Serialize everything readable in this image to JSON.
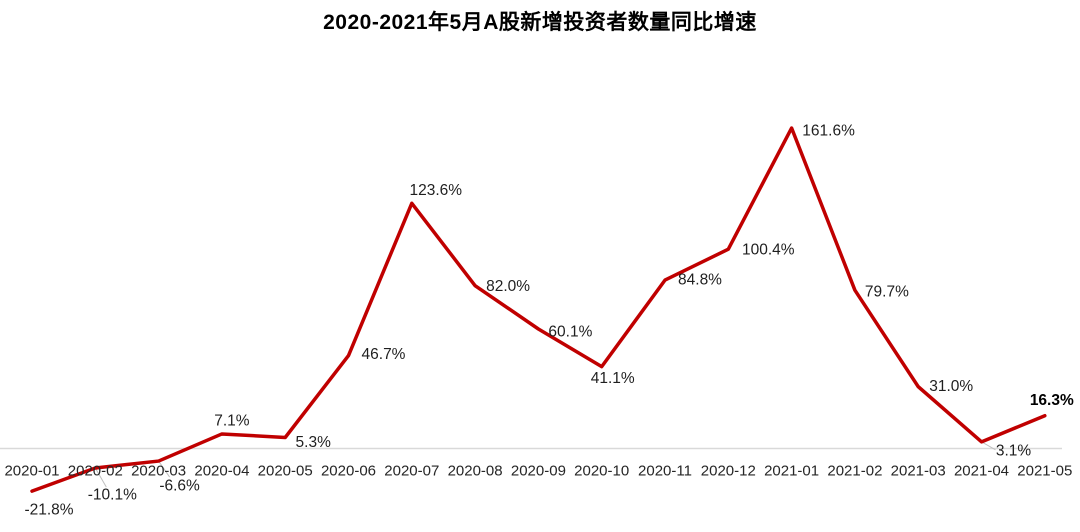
{
  "chart_data": {
    "type": "line",
    "title": "2020-2021年5月A股新增投资者数量同比增速",
    "categories": [
      "2020-01",
      "2020-02",
      "2020-03",
      "2020-04",
      "2020-05",
      "2020-06",
      "2020-07",
      "2020-08",
      "2020-09",
      "2020-10",
      "2020-11",
      "2020-12",
      "2021-01",
      "2021-02",
      "2021-03",
      "2021-04",
      "2021-05"
    ],
    "values": [
      -21.8,
      -10.1,
      -6.6,
      7.1,
      5.3,
      46.7,
      123.6,
      82.0,
      60.1,
      41.1,
      84.8,
      100.4,
      161.6,
      79.7,
      31.0,
      3.1,
      16.3
    ],
    "data_labels": [
      "-21.8%",
      "-10.1%",
      "-6.6%",
      "7.1%",
      "5.3%",
      "46.7%",
      "123.6%",
      "82.0%",
      "60.1%",
      "41.1%",
      "84.8%",
      "100.4%",
      "161.6%",
      "79.7%",
      "31.0%",
      "3.1%",
      "16.3%"
    ],
    "xlabel": "",
    "ylabel": "",
    "ylim": [
      -30,
      180
    ],
    "grid": false,
    "legend": "none",
    "last_label_bold": true,
    "colors": {
      "line": "#C00000",
      "axis_line": "#D9D9D9",
      "leader_line": "#BFBFBF",
      "data_label": "#1F1F1F",
      "axis_label": "#262626",
      "title": "#000000",
      "background": "#FFFFFF"
    }
  }
}
